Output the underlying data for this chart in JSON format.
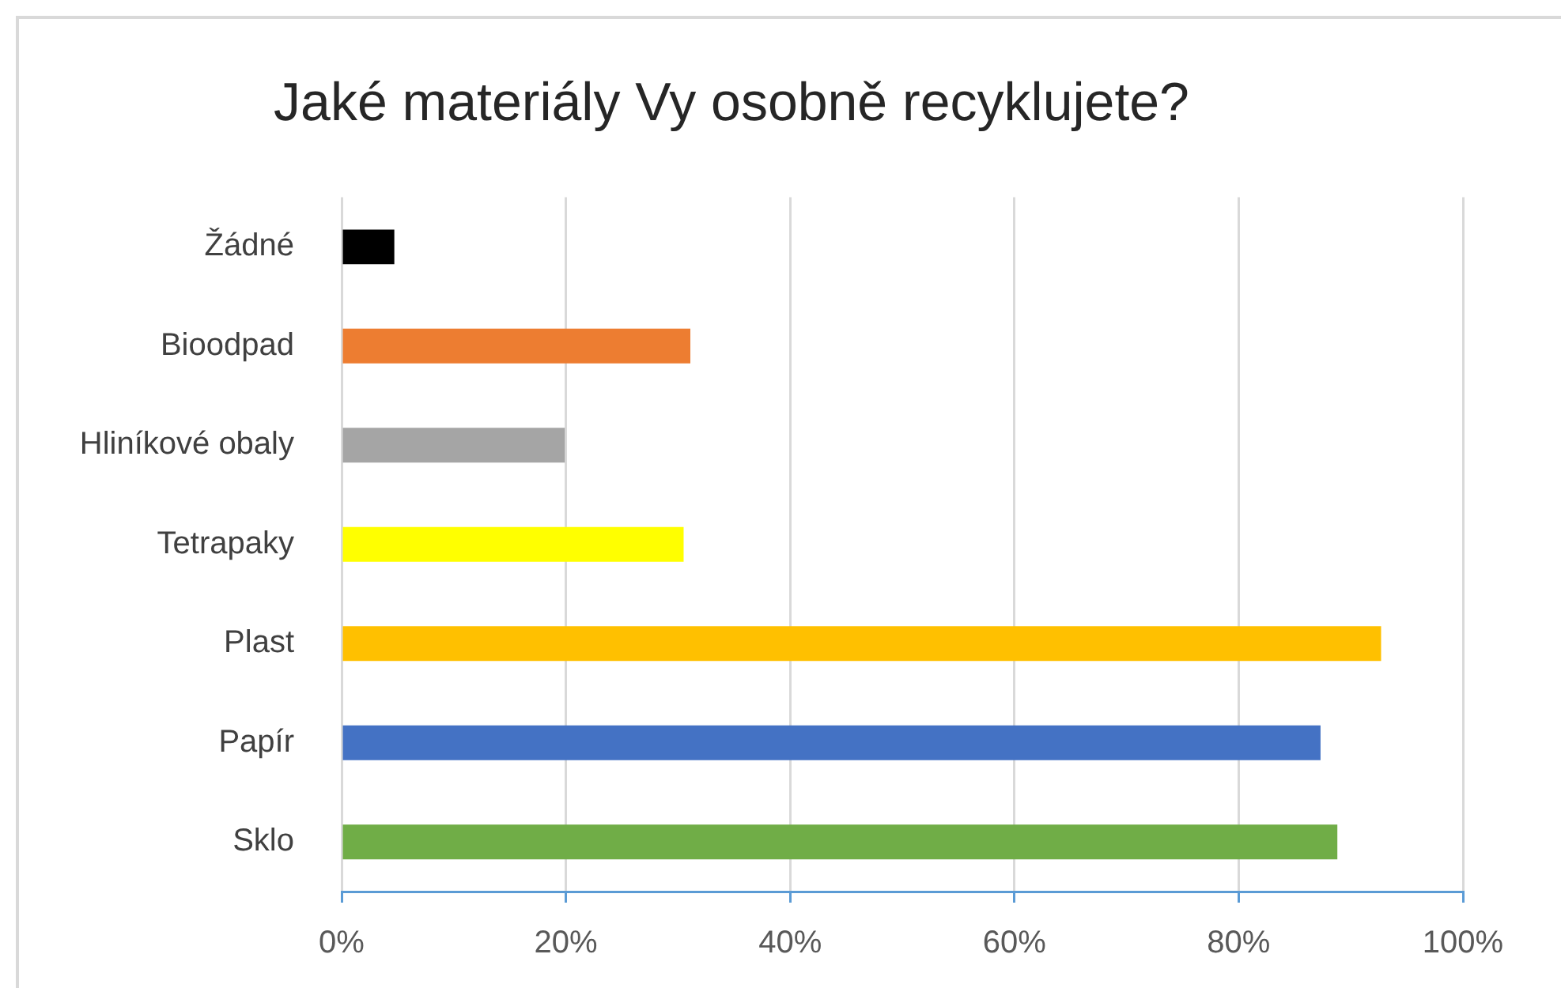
{
  "chart_data": {
    "type": "bar",
    "orientation": "horizontal",
    "title": "Jaké materiály Vy osobně recyklujete?",
    "categories": [
      "Žádné",
      "Bioodpad",
      "Hliníkové obaly",
      "Tetrapaky",
      "Plast",
      "Papír",
      "Sklo"
    ],
    "values": [
      4.7,
      31.1,
      19.9,
      30.5,
      92.7,
      87.3,
      88.8
    ],
    "colors": [
      "#000000",
      "#ed7d31",
      "#a5a5a5",
      "#ffff00",
      "#ffc000",
      "#4472c4",
      "#70ad47"
    ],
    "xlim": [
      0,
      100
    ],
    "xticks": [
      {
        "value": 0,
        "label": "0%"
      },
      {
        "value": 20,
        "label": "20%"
      },
      {
        "value": 40,
        "label": "40%"
      },
      {
        "value": 60,
        "label": "60%"
      },
      {
        "value": 80,
        "label": "80%"
      },
      {
        "value": 100,
        "label": "100%"
      }
    ],
    "grid": "x"
  }
}
